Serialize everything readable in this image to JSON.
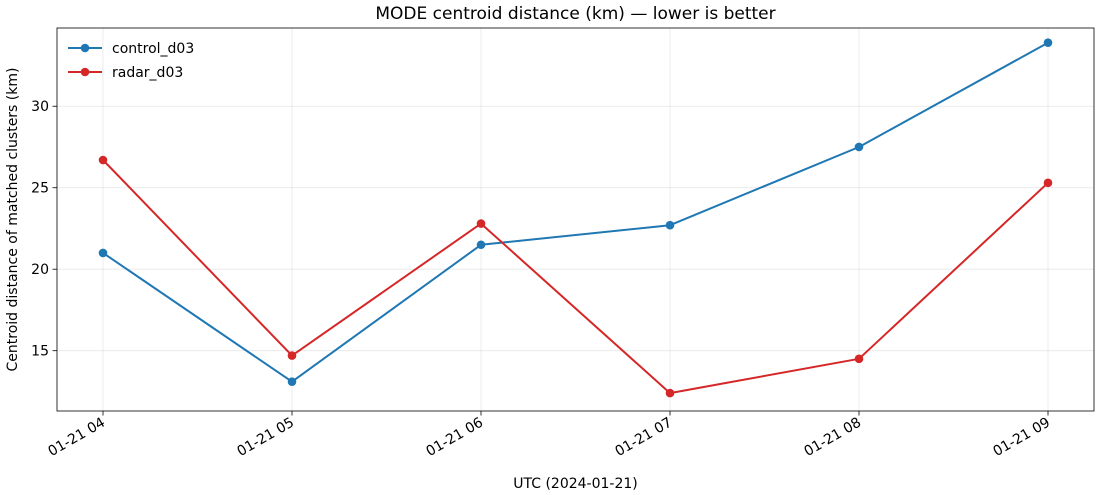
{
  "chart_data": {
    "type": "line",
    "title": "MODE centroid distance (km) — lower is better",
    "xlabel": "UTC (2024-01-21)",
    "ylabel": "Centroid distance of matched clusters (km)",
    "categories": [
      "01-21 04",
      "01-21 05",
      "01-21 06",
      "01-21 07",
      "01-21 08",
      "01-21 09"
    ],
    "series": [
      {
        "name": "control_d03",
        "color": "#1f77b4",
        "values": [
          21.0,
          13.1,
          21.5,
          22.7,
          27.5,
          33.9
        ]
      },
      {
        "name": "radar_d03",
        "color": "#d62728",
        "values": [
          26.7,
          14.7,
          22.8,
          12.4,
          14.5,
          25.3
        ]
      }
    ],
    "ylim": [
      11.3,
      34.8
    ],
    "yticks": [
      15,
      20,
      25,
      30
    ],
    "grid": true,
    "legend": "top-left",
    "marker": "circle"
  }
}
